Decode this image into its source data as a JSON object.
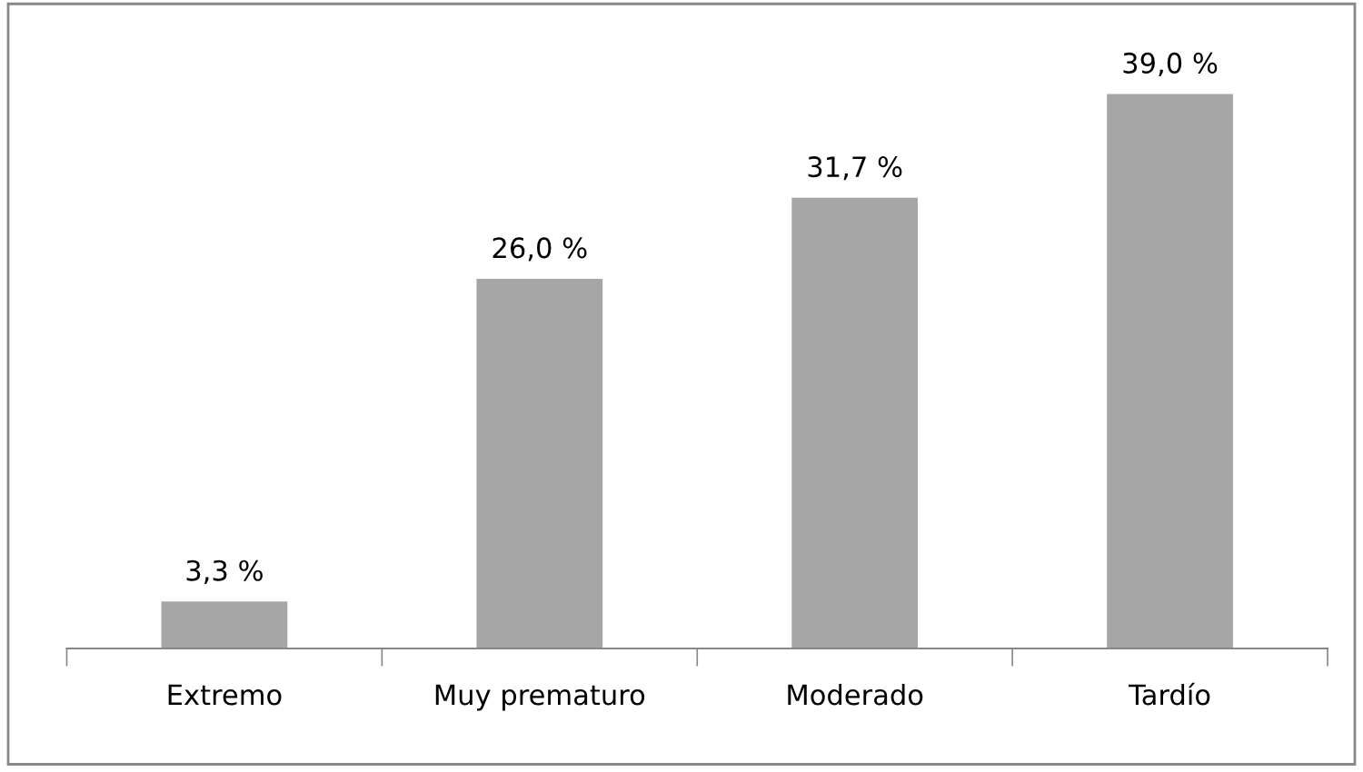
{
  "chart_data": {
    "type": "bar",
    "categories": [
      "Extremo",
      "Muy prematuro",
      "Moderado",
      "Tardío"
    ],
    "values": [
      3.3,
      26.0,
      31.7,
      39.0
    ],
    "value_labels": [
      "3,3 %",
      "26,0 %",
      "31,7 %",
      "39,0 %"
    ],
    "color": "#a6a6a6",
    "grid": false,
    "legend": false
  }
}
